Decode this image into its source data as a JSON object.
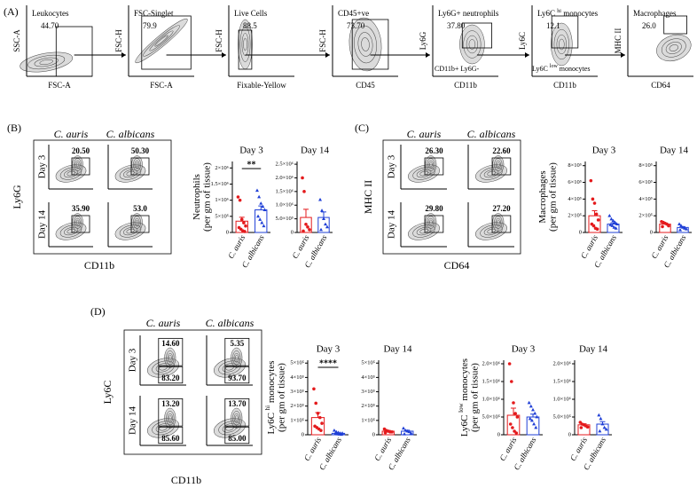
{
  "panel_labels": [
    "(A)",
    "(B)",
    "(C)",
    "(D)"
  ],
  "gating": [
    {
      "y_label": "SSC-A",
      "x_label": "FSC-A",
      "gate": [
        "Leukocytes"
      ],
      "value": "44.70"
    },
    {
      "y_label": "FSC-H",
      "x_label": "FSC-A",
      "gate": [
        "FSC-Singlet"
      ],
      "value": "79.9"
    },
    {
      "y_label": "FSC-H",
      "x_label": "Fixable-Yellow",
      "gate": [
        "Live Cells"
      ],
      "value": "88.5"
    },
    {
      "y_label": "FSC-H",
      "x_label": "CD45",
      "gate": [
        "CD45+ve"
      ],
      "value": "73.70"
    },
    {
      "y_label": "Ly6G",
      "x_label": "CD11b",
      "gate": [
        "Ly6G+ neutrophils"
      ],
      "value": "37.80",
      "extra": [
        "CD11b+ Ly6G-"
      ]
    },
    {
      "y_label": "Ly6C",
      "x_label": "CD11b",
      "gate": [
        "Ly6C",
        "hi",
        "monocytes"
      ],
      "value": "12.1",
      "extra": [
        "Ly6C",
        "low",
        "monocytes"
      ]
    },
    {
      "y_label": "MHC II",
      "x_label": "CD64",
      "gate": [
        "Macrophages"
      ],
      "value": "26.0"
    }
  ],
  "flow": [
    {
      "columns": [
        "C. auris",
        "C. albicans"
      ],
      "rows": [
        "Day 3",
        "Day 14"
      ],
      "y_label": "Ly6G",
      "x_label": "CD11b",
      "gates": [
        [
          "20.50"
        ],
        [
          "50.30"
        ],
        [
          "35.90"
        ],
        [
          "53.0"
        ]
      ]
    },
    {
      "columns": [
        "C. auris",
        "C. albicans"
      ],
      "rows": [
        "Day 3",
        "Day 14"
      ],
      "y_label": "MHC II",
      "x_label": "CD64",
      "gates": [
        [
          "26.30"
        ],
        [
          "22.60"
        ],
        [
          "29.80"
        ],
        [
          "27.20"
        ]
      ]
    },
    {
      "columns": [
        "C. auris",
        "C. albicans"
      ],
      "rows": [
        "Day 3",
        "Day 14"
      ],
      "y_label": "Ly6C",
      "x_label": "CD11b",
      "gates": [
        [
          "14.60",
          "83.20"
        ],
        [
          "5.35",
          "93.70"
        ],
        [
          "13.20",
          "85.60"
        ],
        [
          "13.70",
          "85.00"
        ]
      ]
    }
  ],
  "chart_data": [
    {
      "type": "bar",
      "title": "Day 3",
      "y_label": "Neutrophils",
      "y_sublabel": "(per gm of tissue)",
      "categories": [
        "C. auris",
        "C. albicans"
      ],
      "colors": [
        "#e41a1c",
        "#1f3fd6"
      ],
      "markers": [
        "circle",
        "triangle"
      ],
      "values": [
        350000,
        700000
      ],
      "errors": [
        120000,
        120000
      ],
      "points": [
        [
          1100000,
          1000000,
          400000,
          300000,
          200000,
          150000,
          100000,
          50000,
          30000
        ],
        [
          1300000,
          1100000,
          900000,
          800000,
          700000,
          500000,
          400000,
          300000,
          200000
        ]
      ],
      "significance": "**",
      "ylim": [
        0,
        2200000
      ],
      "yticks": [
        0,
        {
          "value": 500000,
          "label": "5×10⁵"
        },
        {
          "value": 1000000,
          "label": "1×10⁶"
        },
        {
          "value": 1500000,
          "label": "1.5×10⁶"
        },
        {
          "value": 2000000,
          "label": "2×10⁶"
        }
      ]
    },
    {
      "type": "bar",
      "title": "Day 14",
      "categories": [
        "C. auris",
        "C. albicans"
      ],
      "colors": [
        "#e41a1c",
        "#1f3fd6"
      ],
      "markers": [
        "circle",
        "triangle"
      ],
      "values": [
        550000,
        550000
      ],
      "errors": [
        300000,
        200000
      ],
      "points": [
        [
          2000000,
          1500000,
          300000,
          200000,
          100000,
          50000
        ],
        [
          1200000,
          800000,
          500000,
          300000,
          200000,
          100000
        ]
      ],
      "ylim": [
        0,
        2600000
      ],
      "yticks": [
        0,
        {
          "value": 500000,
          "label": "5.0×10⁵"
        },
        {
          "value": 1000000,
          "label": "1.0×10⁶"
        },
        {
          "value": 1500000,
          "label": "1.5×10⁶"
        },
        {
          "value": 2000000,
          "label": "2.0×10⁶"
        },
        {
          "value": 2500000,
          "label": "2.5×10⁶"
        }
      ]
    },
    {
      "type": "bar",
      "title": "Day 3",
      "y_label": "Macrophages",
      "y_sublabel": "(per gm of tissue)",
      "categories": [
        "C. auris",
        "C. albicans"
      ],
      "colors": [
        "#e41a1c",
        "#1f3fd6"
      ],
      "markers": [
        "circle",
        "triangle"
      ],
      "values": [
        200000,
        100000
      ],
      "errors": [
        60000,
        15000
      ],
      "points": [
        [
          620000,
          400000,
          350000,
          220000,
          150000,
          100000,
          80000,
          50000,
          40000
        ],
        [
          200000,
          160000,
          140000,
          120000,
          100000,
          90000,
          80000,
          60000,
          50000
        ]
      ],
      "ylim": [
        0,
        850000
      ],
      "yticks": [
        0,
        {
          "value": 200000,
          "label": "2×10⁵"
        },
        {
          "value": 400000,
          "label": "4×10⁵"
        },
        {
          "value": 600000,
          "label": "6×10⁵"
        },
        {
          "value": 800000,
          "label": "8×10⁵"
        }
      ]
    },
    {
      "type": "bar",
      "title": "Day 14",
      "categories": [
        "C. auris",
        "C. albicans"
      ],
      "colors": [
        "#e41a1c",
        "#1f3fd6"
      ],
      "markers": [
        "circle",
        "triangle"
      ],
      "values": [
        100000,
        60000
      ],
      "errors": [
        10000,
        10000
      ],
      "points": [
        [
          130000,
          120000,
          110000,
          100000,
          80000,
          70000
        ],
        [
          100000,
          80000,
          60000,
          50000,
          40000,
          30000
        ]
      ],
      "ylim": [
        0,
        850000
      ],
      "yticks": [
        0,
        {
          "value": 200000,
          "label": "2×10⁵"
        },
        {
          "value": 400000,
          "label": "4×10⁵"
        },
        {
          "value": 600000,
          "label": "6×10⁵"
        },
        {
          "value": 800000,
          "label": "8×10⁵"
        }
      ]
    },
    {
      "type": "bar",
      "title": "Day 3",
      "y_label": "Ly6C",
      "y_label_sup": "hi",
      "y_label_rest": "monocytes",
      "y_sublabel": "(per gm of tissue)",
      "categories": [
        "C. auris",
        "C. albicans"
      ],
      "colors": [
        "#e41a1c",
        "#1f3fd6"
      ],
      "markers": [
        "circle",
        "triangle"
      ],
      "values": [
        120000,
        10000
      ],
      "errors": [
        35000,
        3000
      ],
      "points": [
        [
          320000,
          220000,
          150000,
          120000,
          80000,
          60000,
          50000,
          40000,
          30000
        ],
        [
          30000,
          20000,
          15000,
          10000,
          10000,
          8000,
          5000,
          3000,
          2000
        ]
      ],
      "significance": "****",
      "ylim": [
        0,
        520000
      ],
      "yticks": [
        0,
        {
          "value": 100000,
          "label": "1×10⁵"
        },
        {
          "value": 200000,
          "label": "2×10⁵"
        },
        {
          "value": 300000,
          "label": "3×10⁵"
        },
        {
          "value": 400000,
          "label": "4×10⁵"
        },
        {
          "value": 500000,
          "label": "5×10⁵"
        }
      ]
    },
    {
      "type": "bar",
      "title": "Day 14",
      "categories": [
        "C. auris",
        "C. albicans"
      ],
      "colors": [
        "#e41a1c",
        "#1f3fd6"
      ],
      "markers": [
        "circle",
        "triangle"
      ],
      "values": [
        25000,
        25000
      ],
      "errors": [
        5000,
        7000
      ],
      "points": [
        [
          40000,
          30000,
          25000,
          20000,
          20000,
          15000
        ],
        [
          45000,
          30000,
          25000,
          20000,
          10000,
          5000
        ]
      ],
      "ylim": [
        0,
        520000
      ],
      "yticks": [
        0,
        {
          "value": 100000,
          "label": "1×10⁵"
        },
        {
          "value": 200000,
          "label": "2×10⁵"
        },
        {
          "value": 300000,
          "label": "3×10⁵"
        },
        {
          "value": 400000,
          "label": "4×10⁵"
        },
        {
          "value": 500000,
          "label": "5×10⁵"
        }
      ]
    },
    {
      "type": "bar",
      "title": "Day 3",
      "y_label": "Ly6C",
      "y_label_sup": "low",
      "y_label_rest": "monocytes",
      "y_sublabel": "(per gm of tissue)",
      "categories": [
        "C. auris",
        "C. albicans"
      ],
      "colors": [
        "#e41a1c",
        "#1f3fd6"
      ],
      "markers": [
        "circle",
        "triangle"
      ],
      "values": [
        550000,
        500000
      ],
      "errors": [
        200000,
        80000
      ],
      "points": [
        [
          2000000,
          1500000,
          900000,
          600000,
          500000,
          300000,
          200000,
          100000,
          50000
        ],
        [
          900000,
          800000,
          700000,
          600000,
          500000,
          450000,
          400000,
          300000,
          200000
        ]
      ],
      "ylim": [
        0,
        2100000
      ],
      "yticks": [
        0,
        {
          "value": 500000,
          "label": "5.0×10⁵"
        },
        {
          "value": 1000000,
          "label": "1.0×10⁶"
        },
        {
          "value": 1500000,
          "label": "1.5×10⁶"
        },
        {
          "value": 2000000,
          "label": "2.0×10⁶"
        }
      ]
    },
    {
      "type": "bar",
      "title": "Day 14",
      "categories": [
        "C. auris",
        "C. albicans"
      ],
      "colors": [
        "#e41a1c",
        "#1f3fd6"
      ],
      "markers": [
        "circle",
        "triangle"
      ],
      "values": [
        280000,
        300000
      ],
      "errors": [
        30000,
        70000
      ],
      "points": [
        [
          350000,
          300000,
          280000,
          250000,
          220000,
          200000
        ],
        [
          550000,
          450000,
          300000,
          200000,
          150000,
          100000
        ]
      ],
      "ylim": [
        0,
        2100000
      ],
      "yticks": [
        0,
        {
          "value": 500000,
          "label": "5.0×10⁵"
        },
        {
          "value": 1000000,
          "label": "1.0×10⁶"
        },
        {
          "value": 1500000,
          "label": "1.5×10⁶"
        },
        {
          "value": 2000000,
          "label": "2.0×10⁶"
        }
      ]
    }
  ]
}
